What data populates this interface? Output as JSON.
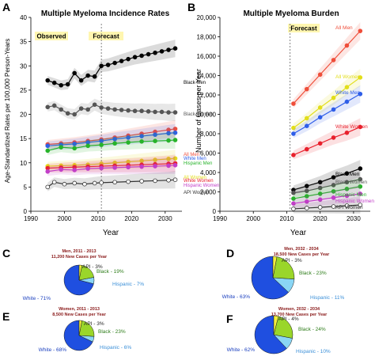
{
  "panels": {
    "A": "A",
    "B": "B",
    "C": "C",
    "D": "D",
    "E": "E",
    "F": "F"
  },
  "colors": {
    "black_men": "#000000",
    "black_women": "#555555",
    "all_men": "#ef4e3a",
    "white_men": "#2f5ee8",
    "hispanic_men": "#27b32a",
    "all_women": "#e2de1a",
    "white_women": "#e8202c",
    "hispanic_women": "#c23ec8",
    "api_women": "#333333",
    "pie_white": "#1f4fe0",
    "pie_hispanic": "#8ad6f5",
    "pie_black": "#9ad62a",
    "pie_api": "#f2ee3c",
    "annot_bg": "#fff6b0",
    "pie_title": "#8a1a1a"
  },
  "chart_data": [
    {
      "type": "line",
      "panel": "A",
      "title": "Multiple Myeloma Incidence Rates",
      "ylabel": "Age-Standardized Rates per 100,000 Person-Years",
      "xlabel": "Year",
      "xlim": [
        1990,
        2035
      ],
      "ylim": [
        0,
        40
      ],
      "xticks": [
        1990,
        2000,
        2010,
        2020,
        2030
      ],
      "yticks": [
        0,
        5,
        10,
        15,
        20,
        25,
        30,
        35,
        40
      ],
      "divider_x": 2011,
      "annotations": [
        "Observed",
        "Forecast"
      ],
      "series": [
        {
          "name": "Black Men",
          "color_key": "black_men",
          "x": [
            1995,
            1997,
            1999,
            2001,
            2003,
            2005,
            2007,
            2009,
            2011,
            2013,
            2015,
            2017,
            2019,
            2021,
            2023,
            2025,
            2027,
            2029,
            2031,
            2033
          ],
          "y": [
            27.0,
            26.5,
            26.0,
            26.2,
            28.5,
            27.0,
            28.0,
            27.8,
            30.0,
            30.2,
            30.6,
            31.0,
            31.4,
            31.8,
            32.1,
            32.4,
            32.7,
            33.0,
            33.3,
            33.6
          ]
        },
        {
          "name": "Black Women",
          "color_key": "black_women",
          "x": [
            1995,
            1997,
            1999,
            2001,
            2003,
            2005,
            2007,
            2009,
            2011,
            2013,
            2015,
            2017,
            2019,
            2021,
            2023,
            2025,
            2027,
            2029,
            2031,
            2033
          ],
          "y": [
            21.5,
            21.8,
            21.0,
            20.2,
            20.0,
            21.2,
            21.0,
            22.0,
            21.4,
            21.2,
            21.0,
            20.9,
            20.8,
            20.7,
            20.7,
            20.6,
            20.5,
            20.5,
            20.4,
            20.4
          ]
        },
        {
          "name": "All Men",
          "color_key": "all_men",
          "x": [
            1995,
            1999,
            2003,
            2007,
            2011,
            2015,
            2019,
            2023,
            2027,
            2031,
            2033
          ],
          "y": [
            13.8,
            14.0,
            14.2,
            14.5,
            14.8,
            15.2,
            15.6,
            16.0,
            16.4,
            16.8,
            17.0
          ]
        },
        {
          "name": "White Men",
          "color_key": "white_men",
          "x": [
            1995,
            1999,
            2003,
            2007,
            2011,
            2015,
            2019,
            2023,
            2027,
            2031,
            2033
          ],
          "y": [
            13.5,
            13.7,
            13.9,
            14.2,
            14.5,
            14.9,
            15.2,
            15.5,
            15.8,
            16.1,
            16.2
          ]
        },
        {
          "name": "Hispanic Men",
          "color_key": "hispanic_men",
          "x": [
            1995,
            1999,
            2003,
            2007,
            2011,
            2015,
            2019,
            2023,
            2027,
            2031,
            2033
          ],
          "y": [
            12.5,
            13.2,
            13.0,
            13.5,
            13.7,
            14.0,
            14.2,
            14.4,
            14.5,
            14.6,
            14.7
          ]
        },
        {
          "name": "All Women",
          "color_key": "all_women",
          "x": [
            1995,
            1999,
            2003,
            2007,
            2011,
            2015,
            2019,
            2023,
            2027,
            2031,
            2033
          ],
          "y": [
            9.3,
            9.4,
            9.5,
            9.6,
            9.8,
            10.0,
            10.2,
            10.4,
            10.6,
            10.8,
            10.9
          ]
        },
        {
          "name": "White Women",
          "color_key": "white_women",
          "x": [
            1995,
            1999,
            2003,
            2007,
            2011,
            2015,
            2019,
            2023,
            2027,
            2031,
            2033
          ],
          "y": [
            8.9,
            9.0,
            9.1,
            9.2,
            9.3,
            9.4,
            9.5,
            9.6,
            9.7,
            9.8,
            9.9
          ]
        },
        {
          "name": "Hispanic Women",
          "color_key": "hispanic_women",
          "x": [
            1995,
            1999,
            2003,
            2007,
            2011,
            2015,
            2019,
            2023,
            2027,
            2031,
            2033
          ],
          "y": [
            8.2,
            8.6,
            8.5,
            8.8,
            8.9,
            9.0,
            9.1,
            9.2,
            9.3,
            9.4,
            9.5
          ]
        },
        {
          "name": "API Women",
          "color_key": "api_women",
          "x": [
            1995,
            1997,
            2000,
            2003,
            2006,
            2009,
            2011,
            2015,
            2019,
            2023,
            2027,
            2031,
            2033
          ],
          "y": [
            5.0,
            6.0,
            5.6,
            5.8,
            5.6,
            5.8,
            5.9,
            6.0,
            6.1,
            6.2,
            6.3,
            6.4,
            6.5
          ],
          "hollow": true
        }
      ],
      "labels": [
        "Black Men",
        "Black Women",
        "All Men",
        "White Men",
        "Hispanic Men",
        "All Women",
        "White Women",
        "Hispanic Women",
        "API Women"
      ]
    },
    {
      "type": "line",
      "panel": "B",
      "title": "Multiple Myeloma Burden",
      "ylabel": "Number of Cases per Year",
      "xlabel": "Year",
      "xlim": [
        1990,
        2035
      ],
      "ylim": [
        0,
        20000
      ],
      "xticks": [
        1990,
        2000,
        2010,
        2020,
        2030
      ],
      "yticks": [
        0,
        2000,
        4000,
        6000,
        8000,
        10000,
        12000,
        14000,
        16000,
        18000,
        20000
      ],
      "ytick_labels": [
        "0",
        "2,000",
        "4,000",
        "6,000",
        "8,000",
        "10,000",
        "12,000",
        "14,000",
        "16,000",
        "18,000",
        "20,000"
      ],
      "divider_x": 2011,
      "annotations": [
        "Forecast"
      ],
      "series": [
        {
          "name": "All Men",
          "color_key": "all_men",
          "x": [
            2012,
            2016,
            2020,
            2024,
            2028,
            2032
          ],
          "y": [
            11100,
            12600,
            14100,
            15600,
            17100,
            18600
          ]
        },
        {
          "name": "All Women",
          "color_key": "all_women",
          "x": [
            2012,
            2016,
            2020,
            2024,
            2028,
            2032
          ],
          "y": [
            8600,
            9600,
            10700,
            11700,
            12800,
            13800
          ]
        },
        {
          "name": "White Men",
          "color_key": "white_men",
          "x": [
            2012,
            2016,
            2020,
            2024,
            2028,
            2032
          ],
          "y": [
            8000,
            8800,
            9700,
            10500,
            11300,
            12100
          ]
        },
        {
          "name": "White Women",
          "color_key": "white_women",
          "x": [
            2012,
            2016,
            2020,
            2024,
            2028,
            2032
          ],
          "y": [
            5800,
            6400,
            7000,
            7600,
            8100,
            8700
          ]
        },
        {
          "name": "Black Men",
          "color_key": "black_men",
          "x": [
            2012,
            2016,
            2020,
            2024,
            2028,
            2032
          ],
          "y": [
            2200,
            2600,
            3000,
            3500,
            3900,
            4400
          ]
        },
        {
          "name": "Black Women",
          "color_key": "black_women",
          "x": [
            2012,
            2016,
            2020,
            2024,
            2028,
            2032
          ],
          "y": [
            1900,
            2100,
            2400,
            2700,
            3000,
            3300
          ]
        },
        {
          "name": "Hispanic Men",
          "color_key": "hispanic_men",
          "x": [
            2012,
            2016,
            2020,
            2024,
            2028,
            2032
          ],
          "y": [
            1300,
            1550,
            1800,
            2050,
            2300,
            2550
          ]
        },
        {
          "name": "Hispanic Women",
          "color_key": "hispanic_women",
          "x": [
            2012,
            2016,
            2020,
            2024,
            2028,
            2032
          ],
          "y": [
            800,
            1000,
            1200,
            1400,
            1600,
            1800
          ]
        },
        {
          "name": "API Women",
          "color_key": "api_women",
          "x": [
            2012,
            2016,
            2020,
            2024,
            2028,
            2032
          ],
          "y": [
            250,
            330,
            410,
            490,
            570,
            650
          ],
          "hollow": true
        }
      ],
      "labels": [
        "All Men",
        "All Women",
        "White Men",
        "White Women",
        "Black Men",
        "Black Women",
        "Hispanic Men",
        "Hispanic Women",
        "API Women"
      ]
    },
    {
      "type": "pie",
      "panel": "C",
      "title_line1": "Men, 2011 - 2013",
      "title_line2": "11,200 New Cases per Year",
      "slices": [
        {
          "name": "White",
          "value": 71,
          "color_key": "pie_white",
          "label": "White - 71%"
        },
        {
          "name": "Hispanic",
          "value": 7,
          "color_key": "pie_hispanic",
          "label": "Hispanic - 7%"
        },
        {
          "name": "Black",
          "value": 19,
          "color_key": "pie_black",
          "label": "Black - 19%"
        },
        {
          "name": "API",
          "value": 3,
          "color_key": "pie_api",
          "label": "API - 3%"
        }
      ]
    },
    {
      "type": "pie",
      "panel": "D",
      "title_line1": "Men, 2032 - 2034",
      "title_line2": "18,500 New Cases per Year",
      "slices": [
        {
          "name": "White",
          "value": 63,
          "color_key": "pie_white",
          "label": "White - 63%"
        },
        {
          "name": "Hispanic",
          "value": 11,
          "color_key": "pie_hispanic",
          "label": "Hispanic - 11%"
        },
        {
          "name": "Black",
          "value": 23,
          "color_key": "pie_black",
          "label": "Black - 23%"
        },
        {
          "name": "API",
          "value": 3,
          "color_key": "pie_api",
          "label": "API - 3%"
        }
      ]
    },
    {
      "type": "pie",
      "panel": "E",
      "title_line1": "Women, 2011 - 2013",
      "title_line2": "8,500 New Cases per Year",
      "slices": [
        {
          "name": "White",
          "value": 68,
          "color_key": "pie_white",
          "label": "White - 68%"
        },
        {
          "name": "Hispanic",
          "value": 6,
          "color_key": "pie_hispanic",
          "label": "Hispanic - 6%"
        },
        {
          "name": "Black",
          "value": 23,
          "color_key": "pie_black",
          "label": "Black - 23%"
        },
        {
          "name": "API",
          "value": 3,
          "color_key": "pie_api",
          "label": "API - 3%"
        }
      ]
    },
    {
      "type": "pie",
      "panel": "F",
      "title_line1": "Women, 2032 - 2034",
      "title_line2": "13,700 New Cases per Year",
      "slices": [
        {
          "name": "White",
          "value": 62,
          "color_key": "pie_white",
          "label": "White - 62%"
        },
        {
          "name": "Hispanic",
          "value": 10,
          "color_key": "pie_hispanic",
          "label": "Hispanic - 10%"
        },
        {
          "name": "Black",
          "value": 24,
          "color_key": "pie_black",
          "label": "Black - 24%"
        },
        {
          "name": "API",
          "value": 4,
          "color_key": "pie_api",
          "label": "API - 4%"
        }
      ]
    }
  ]
}
